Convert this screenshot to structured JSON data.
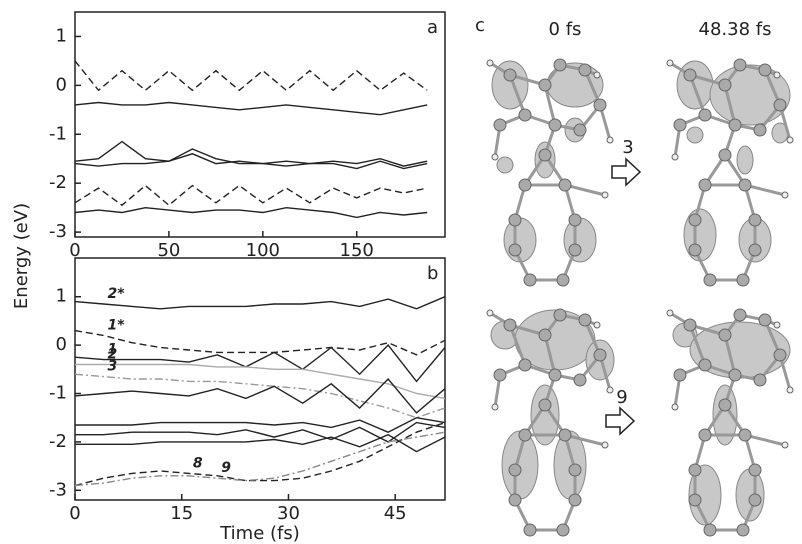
{
  "chart_data": [
    {
      "type": "line",
      "panel_label": "a",
      "ylabel": "Energy (eV)",
      "x": [
        0,
        12.5,
        25,
        37.5,
        50,
        62.5,
        75,
        87.5,
        100,
        112.5,
        125,
        137.5,
        150,
        162.5,
        175,
        187.5
      ],
      "xlim": [
        0,
        197
      ],
      "xticks": [
        0,
        50,
        100,
        150
      ],
      "ylim": [
        -3.1,
        1.5
      ],
      "yticks": [
        -3,
        -2,
        -1,
        0,
        1
      ],
      "series": [
        {
          "color": "#222222",
          "dash": "dashed",
          "values": [
            0.5,
            -0.1,
            0.3,
            -0.1,
            0.3,
            -0.1,
            0.3,
            -0.1,
            0.3,
            -0.1,
            0.3,
            -0.1,
            0.3,
            -0.1,
            0.25,
            -0.1
          ]
        },
        {
          "color": "#222222",
          "dash": "solid",
          "values": [
            -0.4,
            -0.35,
            -0.4,
            -0.4,
            -0.35,
            -0.4,
            -0.45,
            -0.5,
            -0.45,
            -0.4,
            -0.45,
            -0.5,
            -0.55,
            -0.6,
            -0.5,
            -0.4
          ]
        },
        {
          "color": "#222222",
          "dash": "solid",
          "values": [
            -1.55,
            -1.5,
            -1.15,
            -1.5,
            -1.55,
            -1.4,
            -1.6,
            -1.55,
            -1.6,
            -1.55,
            -1.6,
            -1.55,
            -1.6,
            -1.5,
            -1.65,
            -1.55
          ]
        },
        {
          "color": "#222222",
          "dash": "solid",
          "values": [
            -1.6,
            -1.65,
            -1.6,
            -1.6,
            -1.55,
            -1.3,
            -1.5,
            -1.6,
            -1.6,
            -1.65,
            -1.6,
            -1.6,
            -1.7,
            -1.55,
            -1.7,
            -1.6
          ]
        },
        {
          "color": "#222222",
          "dash": "dashed",
          "values": [
            -2.4,
            -2.1,
            -2.45,
            -2.05,
            -2.45,
            -2.05,
            -2.4,
            -2.05,
            -2.4,
            -2.1,
            -2.4,
            -2.1,
            -2.3,
            -2.1,
            -2.2,
            -2.1
          ]
        },
        {
          "color": "#222222",
          "dash": "solid",
          "values": [
            -2.6,
            -2.55,
            -2.6,
            -2.5,
            -2.55,
            -2.6,
            -2.55,
            -2.55,
            -2.6,
            -2.5,
            -2.55,
            -2.6,
            -2.7,
            -2.6,
            -2.65,
            -2.6
          ]
        }
      ]
    },
    {
      "type": "line",
      "panel_label": "b",
      "xlabel": "Time (fs)",
      "x": [
        0,
        4,
        8,
        12,
        16,
        20,
        24,
        28,
        32,
        36,
        40,
        44,
        48,
        52
      ],
      "xlim": [
        0,
        52
      ],
      "xticks": [
        0,
        15,
        30,
        45
      ],
      "ylim": [
        -3.2,
        1.8
      ],
      "yticks": [
        -3,
        -2,
        -1,
        0,
        1
      ],
      "series": [
        {
          "name": "2*",
          "color": "#222222",
          "dash": "solid",
          "values": [
            0.9,
            0.85,
            0.8,
            0.75,
            0.8,
            0.8,
            0.8,
            0.85,
            0.85,
            0.9,
            0.8,
            0.95,
            0.75,
            1.0
          ]
        },
        {
          "name": "1*",
          "color": "#222222",
          "dash": "dashed",
          "values": [
            0.3,
            0.2,
            0.05,
            -0.05,
            -0.1,
            -0.15,
            -0.15,
            -0.15,
            -0.1,
            -0.05,
            -0.1,
            0.05,
            -0.2,
            0.1
          ]
        },
        {
          "name": "1",
          "color": "#222222",
          "dash": "solid",
          "values": [
            -0.25,
            -0.3,
            -0.3,
            -0.3,
            -0.35,
            -0.2,
            -0.45,
            -0.15,
            -0.5,
            -0.05,
            -0.6,
            0.0,
            -0.75,
            -0.05
          ]
        },
        {
          "name": "2",
          "color": "#aaaaaa",
          "dash": "solid",
          "values": [
            -0.4,
            -0.4,
            -0.4,
            -0.4,
            -0.4,
            -0.45,
            -0.45,
            -0.5,
            -0.5,
            -0.6,
            -0.7,
            -0.8,
            -1.0,
            -1.1
          ]
        },
        {
          "name": "3",
          "color": "#999999",
          "dash": "dashdot",
          "values": [
            -0.6,
            -0.65,
            -0.7,
            -0.7,
            -0.75,
            -0.75,
            -0.8,
            -0.85,
            -0.9,
            -1.0,
            -1.15,
            -1.3,
            -1.5,
            -1.3
          ]
        },
        {
          "color": "#222222",
          "dash": "solid",
          "values": [
            -1.05,
            -1.0,
            -0.95,
            -1.0,
            -1.05,
            -0.9,
            -1.1,
            -0.85,
            -1.2,
            -0.8,
            -1.3,
            -0.7,
            -1.4,
            -0.9
          ]
        },
        {
          "color": "#222222",
          "dash": "solid",
          "values": [
            -1.65,
            -1.65,
            -1.65,
            -1.6,
            -1.6,
            -1.6,
            -1.6,
            -1.65,
            -1.6,
            -1.7,
            -1.55,
            -1.8,
            -1.5,
            -1.6
          ]
        },
        {
          "color": "#222222",
          "dash": "solid",
          "values": [
            -1.85,
            -1.85,
            -1.8,
            -1.8,
            -1.8,
            -1.85,
            -1.75,
            -1.9,
            -1.75,
            -1.95,
            -1.7,
            -2.0,
            -1.6,
            -1.7
          ]
        },
        {
          "color": "#222222",
          "dash": "solid",
          "values": [
            -2.05,
            -2.05,
            -2.05,
            -2.0,
            -2.0,
            -2.0,
            -2.0,
            -1.95,
            -2.05,
            -1.9,
            -2.1,
            -1.85,
            -2.2,
            -1.9
          ]
        },
        {
          "name": "8",
          "color": "#222222",
          "dash": "dashed",
          "values": [
            -2.9,
            -2.75,
            -2.65,
            -2.6,
            -2.65,
            -2.7,
            -2.8,
            -2.8,
            -2.75,
            -2.6,
            -2.4,
            -2.1,
            -1.8,
            -1.6
          ]
        },
        {
          "name": "9",
          "color": "#888888",
          "dash": "dashdot",
          "values": [
            -2.9,
            -2.85,
            -2.75,
            -2.7,
            -2.7,
            -2.75,
            -2.8,
            -2.75,
            -2.6,
            -2.4,
            -2.2,
            -2.0,
            -1.9,
            -1.8
          ]
        }
      ]
    }
  ],
  "panel_c": {
    "label": "c",
    "columns": [
      "0 fs",
      "48.38 fs"
    ],
    "transitions": [
      "3",
      "9"
    ]
  }
}
